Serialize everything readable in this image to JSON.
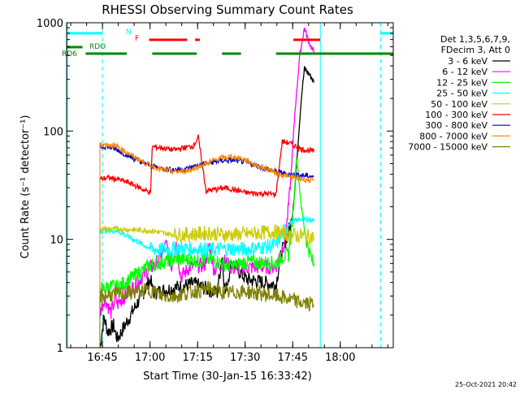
{
  "chart_data": {
    "type": "line",
    "title": "RHESSI Observing Summary Count Rates",
    "xlabel": "Start Time (30-Jan-15 16:33:42)",
    "ylabel": "Count Rate (s⁻¹ detector⁻¹)",
    "yscale": "log",
    "ylim": [
      1,
      1000
    ],
    "xlim_minutes": [
      0,
      103
    ],
    "x_unit": "minutes after 16:33:42",
    "x_ticks": [
      {
        "label": "16:45",
        "minute": 11.3
      },
      {
        "label": "17:00",
        "minute": 26.3
      },
      {
        "label": "17:15",
        "minute": 41.3
      },
      {
        "label": "17:30",
        "minute": 56.3
      },
      {
        "label": "17:45",
        "minute": 71.3
      },
      {
        "label": "18:00",
        "minute": 86.3
      }
    ],
    "y_ticks": [
      {
        "label": "1",
        "value": 1
      },
      {
        "label": "10",
        "value": 10
      },
      {
        "label": "100",
        "value": 100
      },
      {
        "label": "1000",
        "value": 1000
      }
    ],
    "legend_header": [
      "Det 1,3,5,6,7,9,",
      "FDecim 3, Att 0"
    ],
    "legend_placement": "right",
    "series": [
      {
        "name": "3 - 6 keV",
        "color": "#000000",
        "x": [
          10.5,
          11.8,
          13,
          14.8,
          16,
          26.5,
          27.2,
          40,
          47.5,
          49,
          50,
          52,
          56.5,
          66,
          67.5,
          68.5,
          71,
          72,
          73,
          74,
          75,
          76,
          77,
          78
        ],
        "y": [
          1,
          1.9,
          1.4,
          1.6,
          1.2,
          4.3,
          3.2,
          3.9,
          3.2,
          7.0,
          3.2,
          6.2,
          4.3,
          3.8,
          7.0,
          8.5,
          15.0,
          30.0,
          80.0,
          200.0,
          380.0,
          350.0,
          320.0,
          280.0
        ]
      },
      {
        "name": "6 - 12 keV",
        "color": "#ff00ff",
        "x": [
          10.5,
          12,
          14,
          15.5,
          16,
          26.5,
          28,
          31.5,
          33,
          34.5,
          36,
          39,
          43.5,
          45,
          46.5,
          50,
          52,
          56.5,
          66,
          67.5,
          69,
          70.5,
          72,
          73.5,
          75,
          76.5,
          78
        ],
        "y": [
          2.1,
          2.9,
          2.1,
          2.9,
          2.5,
          5.5,
          5.8,
          9.0,
          5.4,
          9.5,
          4.5,
          5.6,
          5.8,
          9.0,
          5.2,
          6.3,
          5.4,
          5.5,
          5.6,
          7.6,
          10.0,
          30.0,
          150.0,
          500.0,
          900.0,
          650.0,
          530.0
        ]
      },
      {
        "name": "12 - 25 keV",
        "color": "#00ff00",
        "x": [
          10.5,
          14,
          16,
          26.5,
          34,
          40,
          46,
          52,
          56.5,
          66,
          68,
          70,
          71.5,
          72.5,
          74,
          75.5,
          77,
          78
        ],
        "y": [
          3.4,
          3.7,
          3.6,
          5.8,
          6.6,
          6.4,
          6.5,
          5.6,
          6.2,
          6.0,
          7.0,
          7.2,
          18.0,
          60.0,
          20.0,
          10.0,
          7.0,
          5.6
        ]
      },
      {
        "name": "25 - 50 keV",
        "color": "#00ffff",
        "x": [
          10.5,
          16,
          26.5,
          30,
          34,
          38,
          40,
          45,
          50,
          56.5,
          66,
          70,
          74,
          78
        ],
        "y": [
          12.0,
          12.0,
          8.2,
          8.0,
          8.2,
          8.3,
          8.2,
          8.0,
          8.2,
          8.1,
          8.8,
          14.0,
          15.5,
          15.0
        ]
      },
      {
        "name": "50 - 100 keV",
        "color": "#cccc00",
        "x": [
          10.5,
          16,
          26.5,
          34,
          40,
          45,
          50,
          56.5,
          66,
          70,
          74,
          78
        ],
        "y": [
          12.5,
          12.5,
          12.0,
          11.0,
          11.2,
          11.5,
          11.0,
          11.2,
          11.8,
          11.0,
          10.8,
          10.5
        ]
      },
      {
        "name": "100 - 300 keV",
        "color": "#ff0000",
        "x": [
          10.5,
          13,
          16,
          20,
          24,
          26.5,
          27,
          34,
          40,
          41.5,
          44,
          50,
          56.5,
          66,
          68,
          70,
          74,
          78
        ],
        "y": [
          36.0,
          37.0,
          36.0,
          33.0,
          29.0,
          27.0,
          72.0,
          67.0,
          73.0,
          88.0,
          28.0,
          30.0,
          27.0,
          26.0,
          80.0,
          78.0,
          68.0,
          65.0
        ]
      },
      {
        "name": "300 - 800 keV",
        "color": "#0000cc",
        "x": [
          10.5,
          13,
          16,
          20,
          24,
          26.5,
          30,
          34,
          38,
          40,
          44,
          48,
          52,
          56,
          60,
          64,
          66,
          70,
          74,
          78
        ],
        "y": [
          72.0,
          72.0,
          67.0,
          58.0,
          51.0,
          48.0,
          45.0,
          44.0,
          45.0,
          47.0,
          50.0,
          53.0,
          54.0,
          52.0,
          48.0,
          44.0,
          42.0,
          40.0,
          39.0,
          38.0
        ]
      },
      {
        "name": "800 - 7000 keV",
        "color": "#ff8800",
        "x": [
          10.5,
          13,
          16,
          20,
          24,
          26.5,
          30,
          34,
          38,
          40,
          44,
          48,
          52,
          56,
          60,
          64,
          66,
          70,
          74,
          78
        ],
        "y": [
          75.0,
          75.0,
          72.0,
          61.0,
          52.0,
          48.0,
          44.0,
          42.0,
          43.0,
          45.0,
          50.0,
          56.0,
          58.0,
          55.0,
          48.0,
          44.0,
          41.0,
          38.0,
          36.0,
          35.0
        ]
      },
      {
        "name": "7000 - 15000 keV",
        "color": "#808000",
        "x": [
          10.5,
          16,
          26.5,
          30,
          34,
          38,
          40,
          45,
          50,
          56.5,
          66,
          70,
          74,
          78
        ],
        "y": [
          3.0,
          3.1,
          3.4,
          3.0,
          3.0,
          3.2,
          3.3,
          3.5,
          3.2,
          3.3,
          3.0,
          2.8,
          2.6,
          2.5
        ]
      }
    ],
    "flag_rows": [
      {
        "label": "N",
        "label_color": "#00ffff",
        "color": "#00ffff",
        "segments_minutes": [
          [
            0,
            11.3
          ],
          [
            99,
            103
          ]
        ]
      },
      {
        "label": "F",
        "label_color": "#ff0000",
        "color": "#ff0000",
        "segments_minutes": [
          [
            26,
            38
          ],
          [
            40.5,
            42
          ],
          [
            71.5,
            80
          ]
        ]
      },
      {
        "label": "RDO",
        "label_color": "#008800",
        "color": "#008800",
        "segments_minutes": [
          [
            0,
            5
          ]
        ]
      },
      {
        "label": "RD6",
        "label_color": "#008800",
        "color": "#008800",
        "segments_minutes": [
          [
            6,
            19
          ],
          [
            27,
            41
          ],
          [
            49,
            55
          ],
          [
            66,
            103
          ]
        ]
      }
    ],
    "vertical_markers_minutes": [
      {
        "minute": 11.3,
        "color": "#00ffff",
        "style": "dashed"
      },
      {
        "minute": 80.0,
        "color": "#00ffff",
        "style": "solid"
      },
      {
        "minute": 99.0,
        "color": "#00ffff",
        "style": "dashed"
      }
    ],
    "grid": false,
    "footer": "25-Oct-2021 20:42"
  }
}
